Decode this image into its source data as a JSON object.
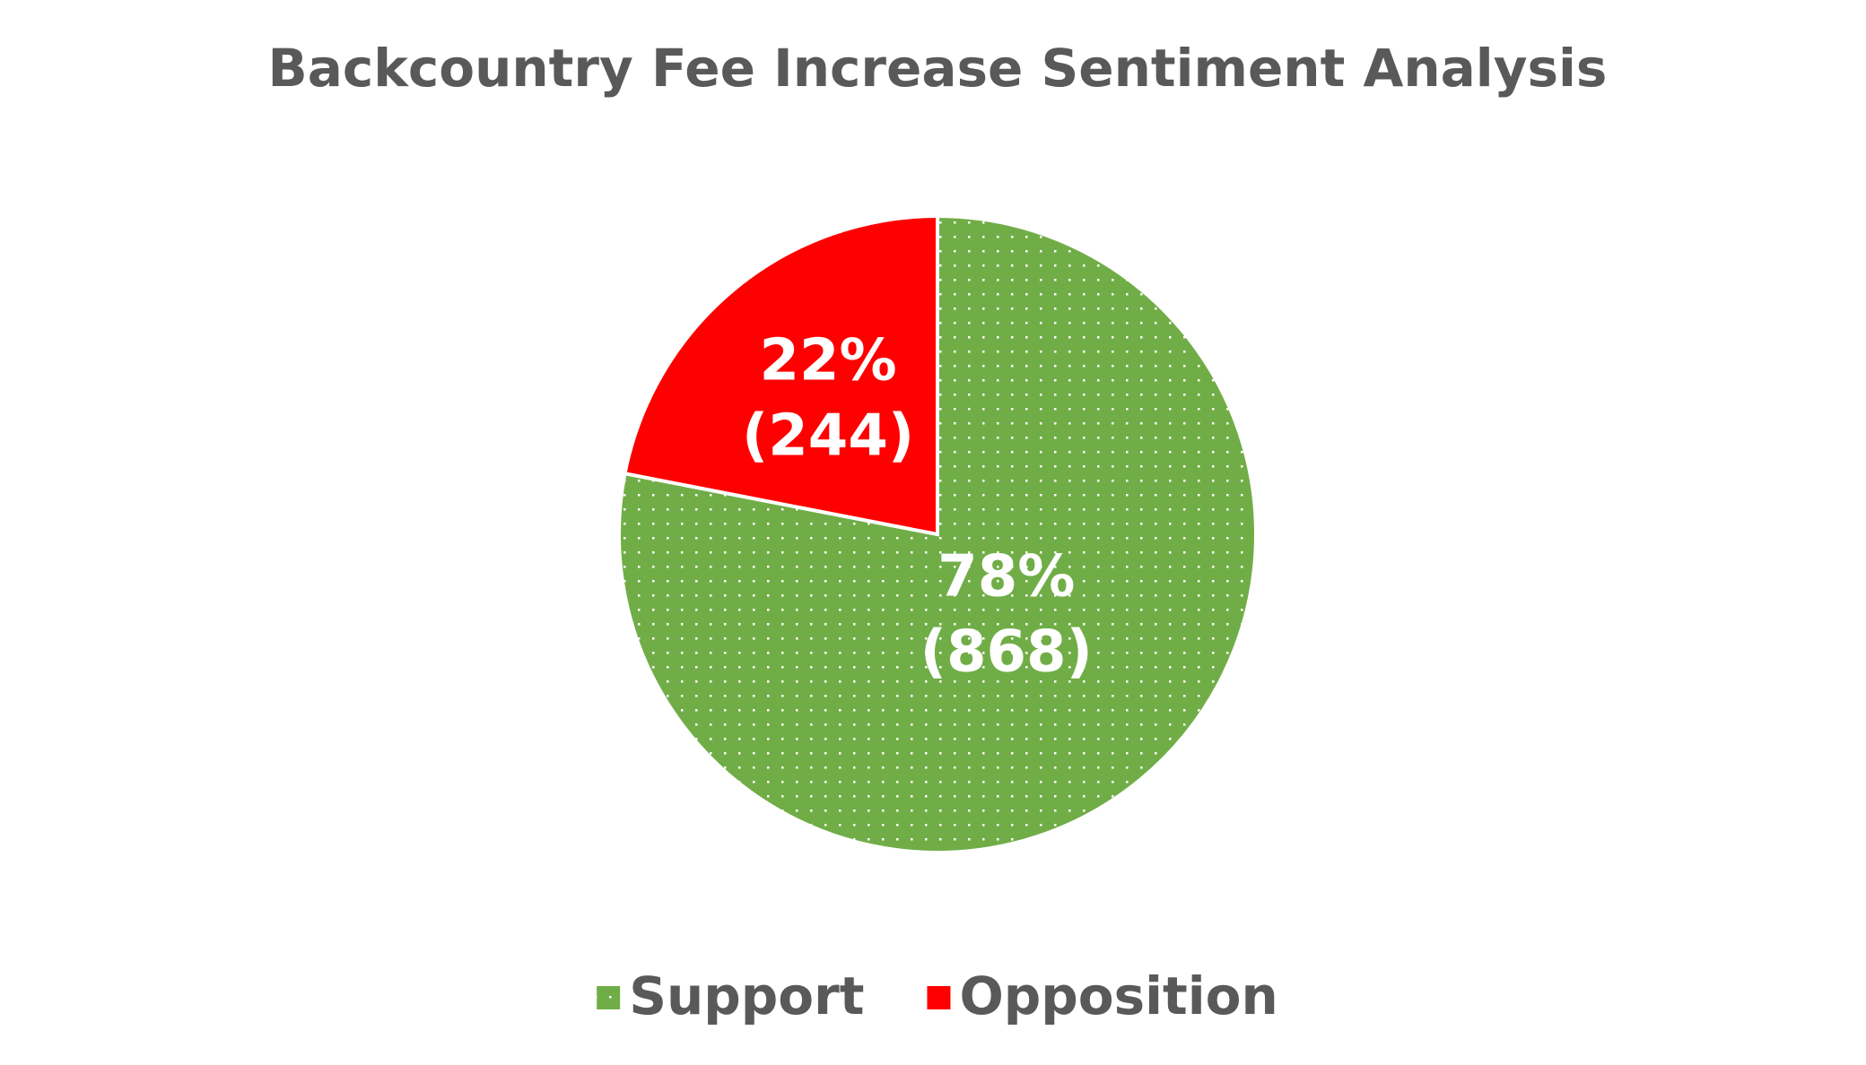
{
  "chart_data": {
    "type": "pie",
    "title": "Backcountry Fee Increase Sentiment Analysis",
    "categories": [
      "Support",
      "Opposition"
    ],
    "values": [
      868,
      244
    ],
    "value_labels": [
      "(868)",
      "(244)"
    ],
    "percentages": [
      78,
      22
    ],
    "percentage_labels": [
      "78%",
      "22%"
    ],
    "colors": [
      "#70ad47",
      "#ff0000"
    ],
    "patterns": [
      "dots",
      "solid"
    ],
    "legend": "bottom"
  }
}
